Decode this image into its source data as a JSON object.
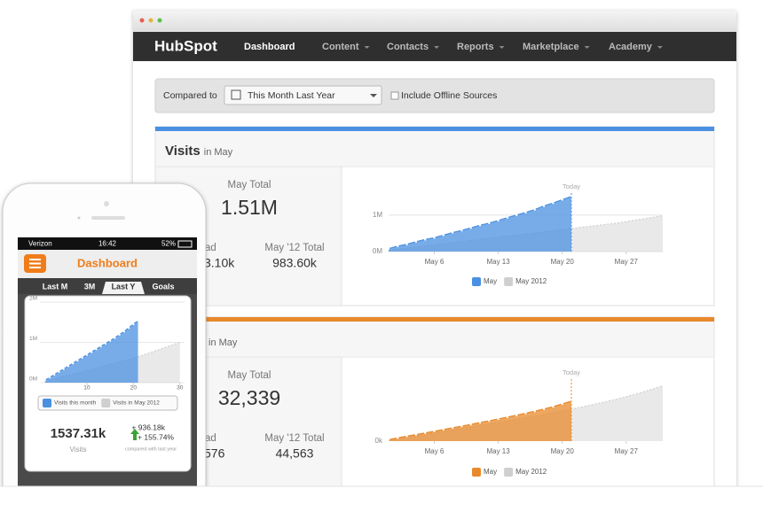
{
  "nav": {
    "logo": "HubSpot",
    "items": [
      "Dashboard",
      "Content",
      "Contacts",
      "Reports",
      "Marketplace",
      "Academy"
    ]
  },
  "filter": {
    "label": "Compared to",
    "select": "This Month Last Year",
    "checkbox": "Include Offline Sources"
  },
  "panels": [
    {
      "title": "Visits",
      "subtitle": "in May",
      "total_label": "May Total",
      "total": "1.51M",
      "left_label": "ad",
      "left_value": "3.10k",
      "prev_label": "May '12 Total",
      "prev_value": "983.60k",
      "chart": {
        "type": "area",
        "x": [
          1,
          2,
          3,
          4,
          5,
          6,
          7,
          8,
          9,
          10,
          11,
          12,
          13,
          14,
          15,
          16,
          17,
          18,
          19,
          20,
          21,
          22,
          23,
          24,
          25,
          26,
          27,
          28,
          29,
          30,
          31
        ],
        "xlim": [
          1,
          31
        ],
        "xticks": [
          {
            "value": 6,
            "label": "May 6"
          },
          {
            "value": 13,
            "label": "May 13"
          },
          {
            "value": 20,
            "label": "May 20"
          },
          {
            "value": 27,
            "label": "May 27"
          }
        ],
        "ylim": [
          0,
          1.6
        ],
        "yticks": [
          {
            "value": 0,
            "label": "0M"
          },
          {
            "value": 1,
            "label": "1M"
          }
        ],
        "grid": true,
        "annotations": [
          {
            "x": 21,
            "label": "Today"
          }
        ],
        "series": [
          {
            "name": "May",
            "color": "#4a90e2",
            "markers": true,
            "values": [
              0.08,
              0.15,
              0.2,
              0.27,
              0.33,
              0.38,
              0.45,
              0.52,
              0.58,
              0.65,
              0.72,
              0.78,
              0.85,
              0.93,
              1.0,
              1.07,
              1.15,
              1.25,
              1.33,
              1.42,
              1.51,
              null,
              null,
              null,
              null,
              null,
              null,
              null,
              null,
              null,
              null
            ]
          },
          {
            "name": "May 2012",
            "color": "#cfcfcf",
            "values": [
              0.03,
              0.06,
              0.09,
              0.12,
              0.15,
              0.18,
              0.21,
              0.24,
              0.27,
              0.3,
              0.33,
              0.36,
              0.39,
              0.42,
              0.45,
              0.48,
              0.51,
              0.54,
              0.57,
              0.6,
              0.63,
              0.66,
              0.69,
              0.72,
              0.75,
              0.78,
              0.82,
              0.86,
              0.9,
              0.94,
              0.9836
            ]
          }
        ]
      }
    },
    {
      "subtitle": "in May",
      "total_label": "May Total",
      "total": "32,339",
      "left_label": "ad",
      "left_value": "576",
      "prev_label": "May '12 Total",
      "prev_value": "44,563",
      "chart": {
        "type": "area",
        "x": [
          1,
          2,
          3,
          4,
          5,
          6,
          7,
          8,
          9,
          10,
          11,
          12,
          13,
          14,
          15,
          16,
          17,
          18,
          19,
          20,
          21,
          22,
          23,
          24,
          25,
          26,
          27,
          28,
          29,
          30,
          31
        ],
        "xlim": [
          1,
          31
        ],
        "xticks": [
          {
            "value": 6,
            "label": "May 6"
          },
          {
            "value": 13,
            "label": "May 13"
          },
          {
            "value": 20,
            "label": "May 20"
          },
          {
            "value": 27,
            "label": "May 27"
          }
        ],
        "ylim": [
          0,
          50000
        ],
        "yticks": [
          {
            "value": 0,
            "label": "0k"
          }
        ],
        "grid": false,
        "annotations": [
          {
            "x": 21,
            "label": "Today"
          }
        ],
        "series": [
          {
            "name": "May",
            "color": "#e8892b",
            "markers": true,
            "values": [
              1200,
              2600,
              4000,
              5300,
              6600,
              8000,
              9400,
              10800,
              12100,
              13500,
              15000,
              16400,
              17900,
              19400,
              20900,
              22500,
              24100,
              25900,
              27800,
              30000,
              32339,
              null,
              null,
              null,
              null,
              null,
              null,
              null,
              null,
              null,
              null
            ]
          },
          {
            "name": "May 2012",
            "color": "#cfcfcf",
            "values": [
              1000,
              2200,
              3300,
              4500,
              5600,
              6800,
              7900,
              9100,
              10300,
              11400,
              12600,
              13800,
              15000,
              16200,
              17500,
              18800,
              20100,
              21500,
              22900,
              24300,
              25800,
              27300,
              28900,
              30500,
              32200,
              34000,
              35900,
              37900,
              40000,
              42200,
              44563
            ]
          }
        ]
      }
    }
  ],
  "mobile": {
    "carrier": "Verizon",
    "time": "16:42",
    "battery": "52%",
    "title": "Dashboard",
    "tabs": [
      "Last M",
      "3M",
      "Last Y",
      "Goals"
    ],
    "active_tab": 2,
    "chart": {
      "type": "area",
      "x": [
        1,
        2,
        3,
        4,
        5,
        6,
        7,
        8,
        9,
        10,
        11,
        12,
        13,
        14,
        15,
        16,
        17,
        18,
        19,
        20,
        21,
        22,
        23,
        24,
        25,
        26,
        27,
        28,
        29,
        30
      ],
      "xlim": [
        0,
        31
      ],
      "xticks": [
        10,
        20,
        30
      ],
      "ylim": [
        0,
        2
      ],
      "yticks": [
        {
          "value": 0,
          "label": "0M"
        },
        {
          "value": 1,
          "label": "1M"
        },
        {
          "value": 2,
          "label": "2M"
        }
      ],
      "grid": true,
      "series": [
        {
          "name": "Visits this month",
          "color": "#4a90e2",
          "markers": true,
          "values": [
            0.06,
            0.13,
            0.2,
            0.27,
            0.34,
            0.41,
            0.48,
            0.55,
            0.62,
            0.69,
            0.76,
            0.83,
            0.9,
            0.97,
            1.04,
            1.11,
            1.19,
            1.27,
            1.36,
            1.45,
            1.53731,
            null,
            null,
            null,
            null,
            null,
            null,
            null,
            null,
            null
          ]
        },
        {
          "name": "Visits in May 2012",
          "color": "#cfcfcf",
          "values": [
            0.03,
            0.06,
            0.09,
            0.12,
            0.15,
            0.18,
            0.21,
            0.24,
            0.27,
            0.3,
            0.33,
            0.36,
            0.39,
            0.42,
            0.45,
            0.48,
            0.51,
            0.54,
            0.57,
            0.6,
            0.64,
            0.68,
            0.72,
            0.76,
            0.8,
            0.84,
            0.88,
            0.92,
            0.96,
            1.0
          ]
        }
      ]
    },
    "total": "1537.31k",
    "total_label": "Visits",
    "delta": "+ 936.18k",
    "delta_pct": "+ 155.74%",
    "compare_note": "compared with last year"
  }
}
